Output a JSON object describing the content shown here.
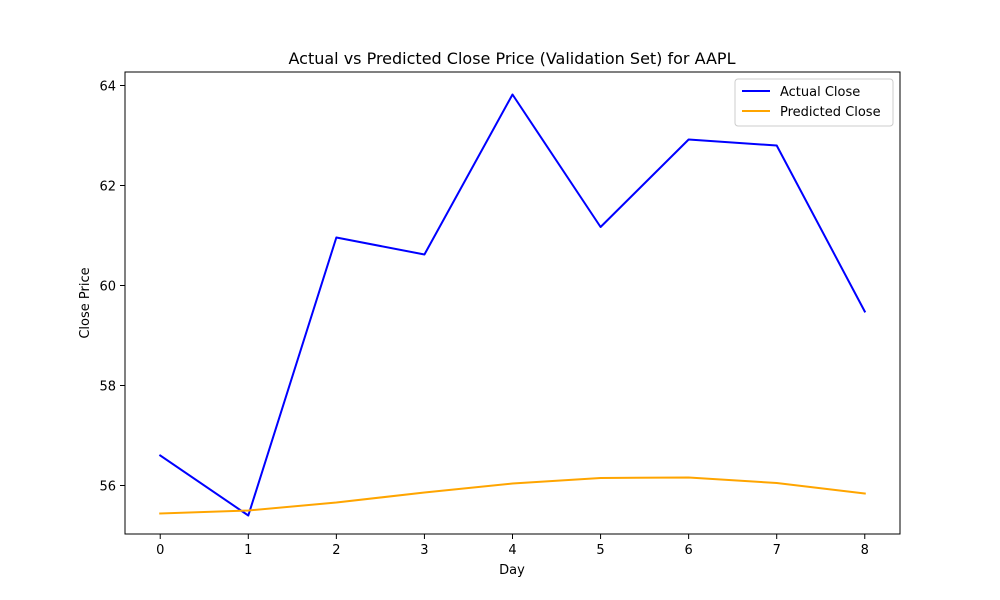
{
  "chart_data": {
    "type": "line",
    "title": "Actual vs Predicted Close Price (Validation Set) for AAPL",
    "xlabel": "Day",
    "ylabel": "Close Price",
    "x": [
      0,
      1,
      2,
      3,
      4,
      5,
      6,
      7,
      8
    ],
    "xticks": [
      "0",
      "1",
      "2",
      "3",
      "4",
      "5",
      "6",
      "7",
      "8"
    ],
    "yticks": [
      "56",
      "58",
      "60",
      "62",
      "64"
    ],
    "ytick_values": [
      56,
      58,
      60,
      62,
      64
    ],
    "xlim": [
      -0.4,
      8.4
    ],
    "ylim": [
      55.03,
      64.27
    ],
    "grid": false,
    "legend_position": "top-right",
    "series": [
      {
        "name": "Actual Close",
        "color": "#0000ff",
        "values": [
          56.6,
          55.4,
          60.96,
          60.62,
          63.82,
          61.17,
          62.92,
          62.8,
          59.48
        ]
      },
      {
        "name": "Predicted Close",
        "color": "#ffa500",
        "values": [
          55.44,
          55.5,
          55.66,
          55.86,
          56.04,
          56.15,
          56.16,
          56.05,
          55.84
        ]
      }
    ]
  }
}
